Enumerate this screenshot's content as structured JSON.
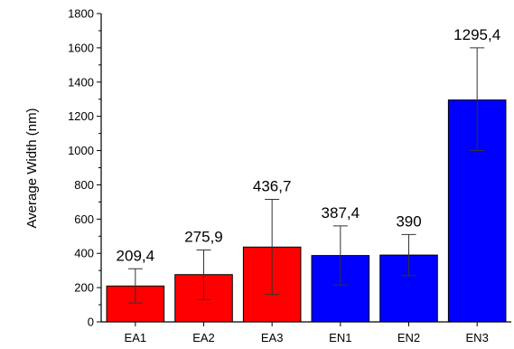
{
  "chart_data": {
    "type": "bar",
    "title": "",
    "xlabel": "",
    "ylabel": "Average  Width (nm)",
    "ylim": [
      0,
      1800
    ],
    "yticks": [
      0,
      200,
      400,
      600,
      800,
      1000,
      1200,
      1400,
      1600,
      1800
    ],
    "grid": false,
    "categories": [
      "EA1",
      "EA2",
      "EA3",
      "EN1",
      "EN2",
      "EN3"
    ],
    "values": [
      209.4,
      275.9,
      436.7,
      387.4,
      390,
      1295.4
    ],
    "value_labels": [
      "209,4",
      "275,9",
      "436,7",
      "387,4",
      "390",
      "1295,4"
    ],
    "error_low": [
      110,
      130,
      160,
      215,
      270,
      1000
    ],
    "error_high": [
      310,
      420,
      715,
      560,
      510,
      1600
    ],
    "bar_colors": [
      "#ff0000",
      "#ff0000",
      "#ff0000",
      "#0000ff",
      "#0000ff",
      "#0000ff"
    ]
  }
}
